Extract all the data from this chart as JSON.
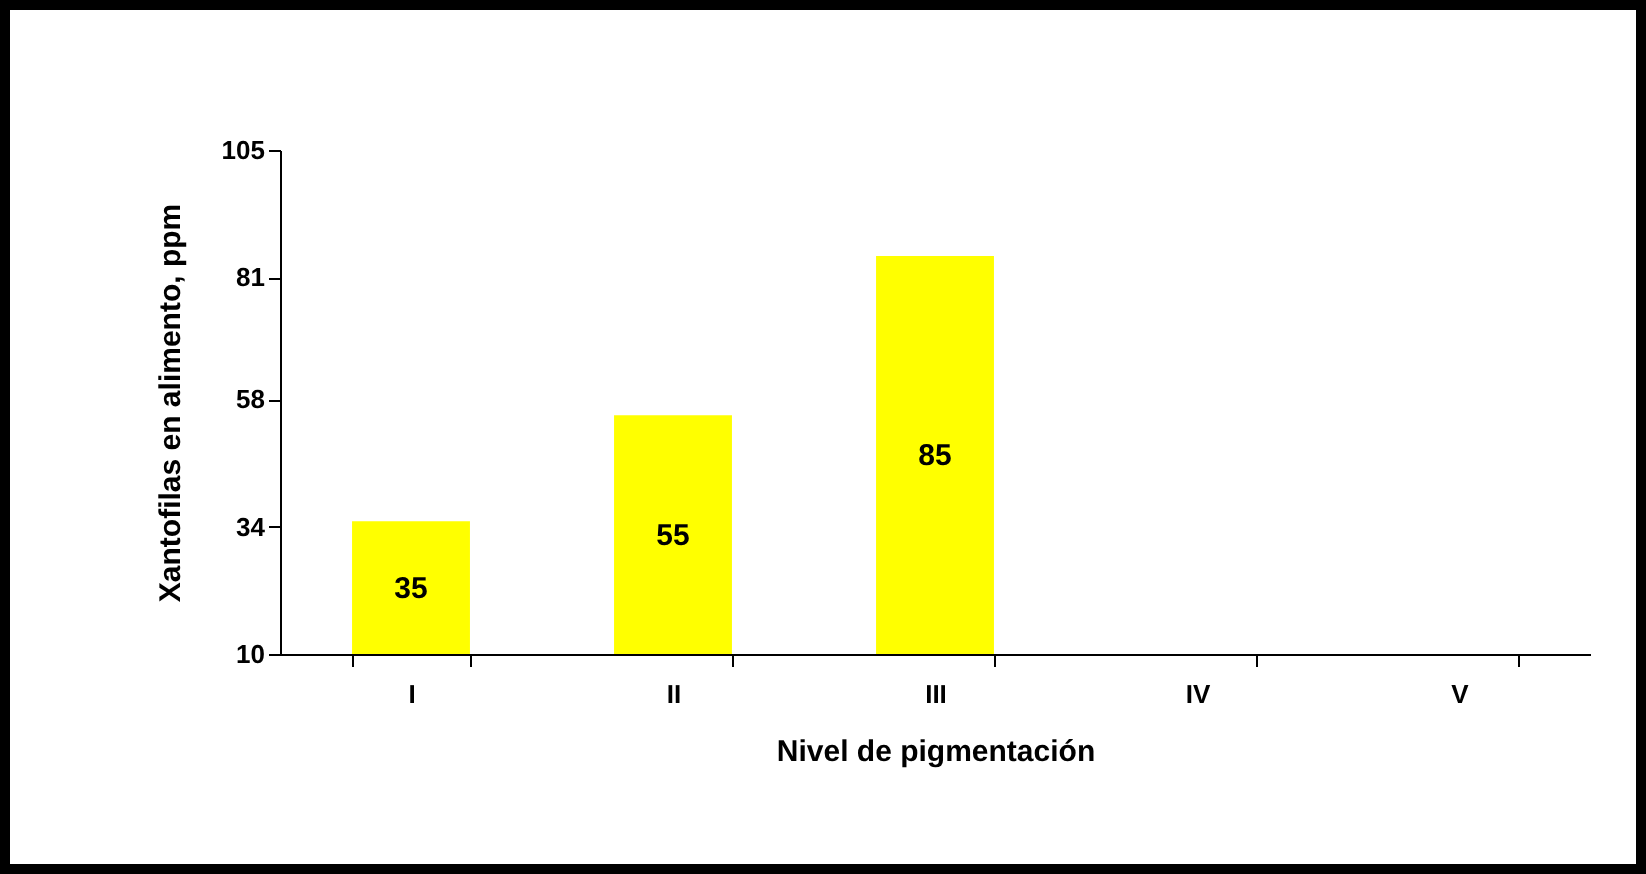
{
  "chart_data": {
    "type": "bar",
    "xlabel": "Nivel de pigmentación",
    "ylabel": "Xantofilas en alimento, ppm",
    "categories": [
      "I",
      "II",
      "III",
      "IV",
      "V"
    ],
    "values": [
      35,
      55,
      85,
      null,
      null
    ],
    "color": "#ffff00",
    "ylim": [
      10,
      105
    ],
    "yticks": [
      10,
      34,
      58,
      81,
      105
    ],
    "grid": false,
    "data_labels": true
  }
}
